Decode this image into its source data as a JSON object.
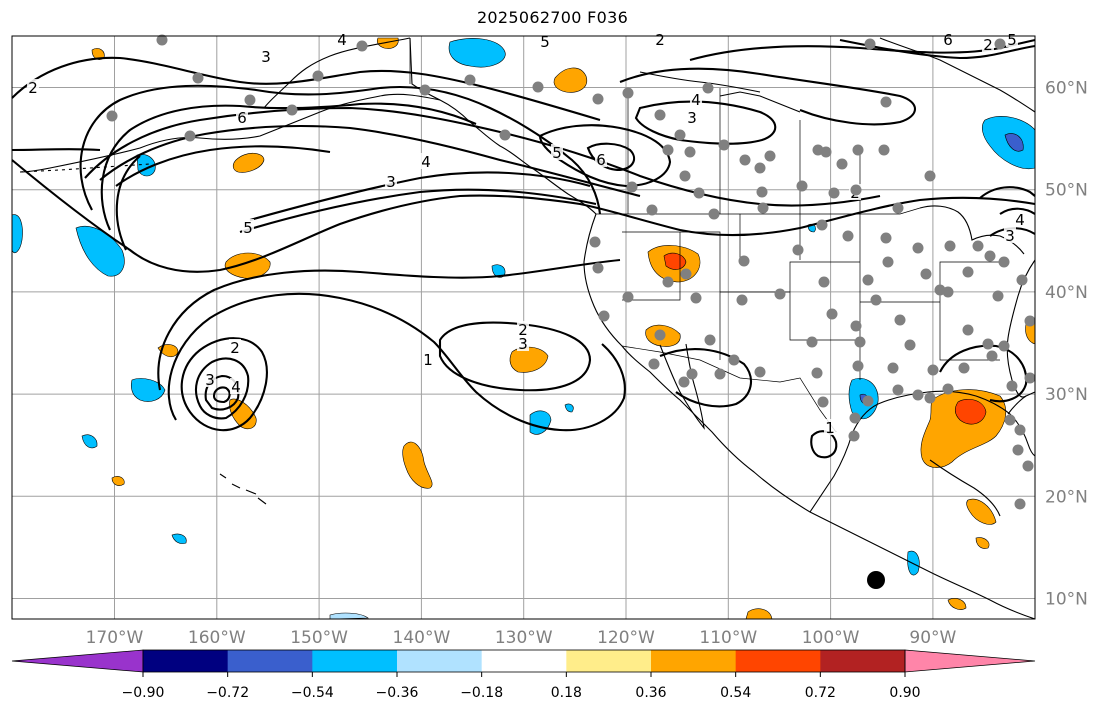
{
  "title": "2025062700 F036",
  "map": {
    "projection": "cylindrical",
    "lon_range": [
      -180,
      -80
    ],
    "lat_range": [
      8,
      65
    ],
    "graticule_interval_deg": 10,
    "contour_line_color": "#000000",
    "station_marker_color": "#808080",
    "highlight_marker_color": "#000000"
  },
  "longitude_labels": [
    "170°W",
    "160°W",
    "150°W",
    "140°W",
    "130°W",
    "120°W",
    "110°W",
    "100°W",
    "90°W"
  ],
  "latitude_labels": [
    "60°N",
    "50°N",
    "40°N",
    "30°N",
    "20°N",
    "10°N"
  ],
  "contour_labels": [
    "2",
    "4",
    "3",
    "6",
    "5",
    "4",
    "3",
    "5",
    "6",
    "4",
    "3",
    "5",
    "2",
    "4",
    "3",
    "2",
    "3",
    "2",
    "3",
    "4",
    "1",
    "2",
    "2",
    "6",
    "5",
    "1"
  ],
  "colorbar": {
    "extend": "both",
    "colors": [
      "#9933cc",
      "#000080",
      "#3a5fcd",
      "#00bfff",
      "#b0e2ff",
      "#ffffff",
      "#ffed8a",
      "#ffa500",
      "#ff4500",
      "#b22222",
      "#ff85a9"
    ],
    "tick_labels": [
      "−0.90",
      "−0.72",
      "−0.54",
      "−0.36",
      "−0.18",
      "0.18",
      "0.36",
      "0.54",
      "0.72",
      "0.90"
    ]
  }
}
